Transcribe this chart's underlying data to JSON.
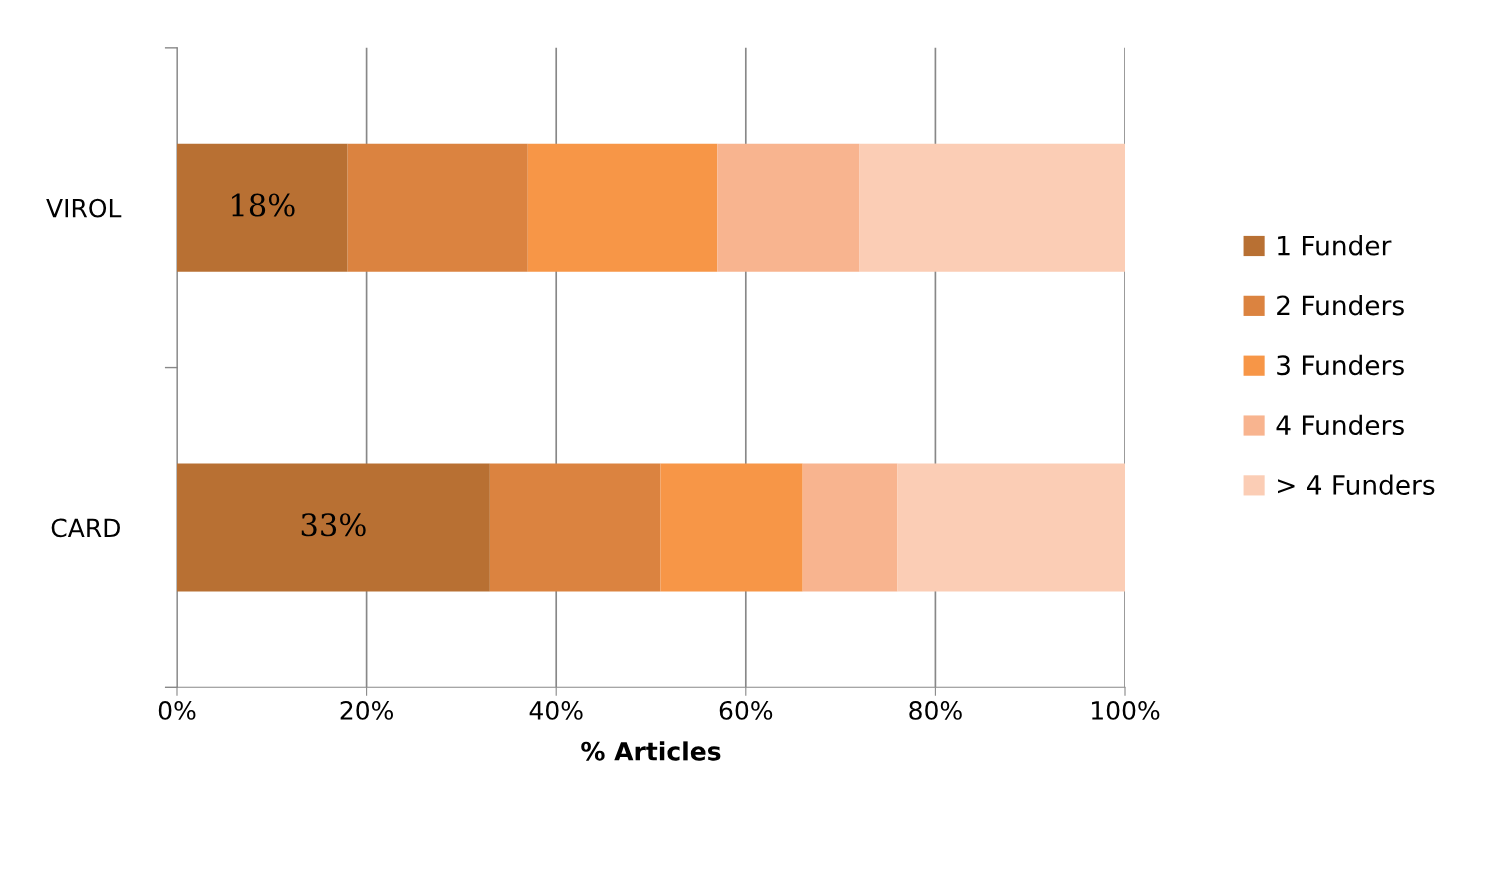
{
  "chart_data": {
    "type": "bar",
    "orientation": "horizontal",
    "stacked": true,
    "xlabel": "% Articles",
    "categories": [
      "VIROL",
      "CARD"
    ],
    "series": [
      {
        "name": "1 Funder",
        "color": "#b87033",
        "values": [
          18,
          33
        ],
        "value_labels": [
          "18%",
          "33%"
        ]
      },
      {
        "name": "2 Funders",
        "color": "#db8340",
        "values": [
          19,
          18
        ]
      },
      {
        "name": "3 Funders",
        "color": "#f79647",
        "values": [
          20,
          15
        ]
      },
      {
        "name": "4 Funders",
        "color": "#f8b48f",
        "values": [
          15,
          10
        ]
      },
      {
        "name": "> 4 Funders",
        "color": "#fbcdb5",
        "values": [
          28,
          24
        ]
      }
    ],
    "xlim": [
      0,
      100
    ],
    "xticks": [
      {
        "value": 0,
        "label": "0%"
      },
      {
        "value": 20,
        "label": "20%"
      },
      {
        "value": 40,
        "label": "40%"
      },
      {
        "value": 60,
        "label": "60%"
      },
      {
        "value": 80,
        "label": "80%"
      },
      {
        "value": 100,
        "label": "100%"
      }
    ],
    "grid": "x",
    "legend": "right"
  }
}
